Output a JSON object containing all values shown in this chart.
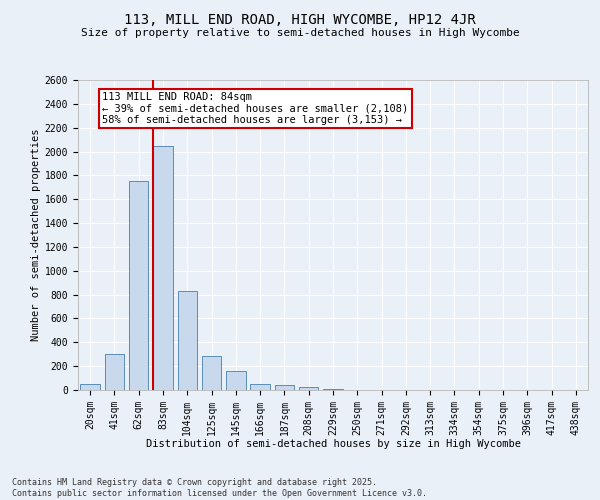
{
  "title": "113, MILL END ROAD, HIGH WYCOMBE, HP12 4JR",
  "subtitle": "Size of property relative to semi-detached houses in High Wycombe",
  "xlabel": "Distribution of semi-detached houses by size in High Wycombe",
  "ylabel": "Number of semi-detached properties",
  "categories": [
    "20sqm",
    "41sqm",
    "62sqm",
    "83sqm",
    "104sqm",
    "125sqm",
    "145sqm",
    "166sqm",
    "187sqm",
    "208sqm",
    "229sqm",
    "250sqm",
    "271sqm",
    "292sqm",
    "313sqm",
    "334sqm",
    "354sqm",
    "375sqm",
    "396sqm",
    "417sqm",
    "438sqm"
  ],
  "values": [
    50,
    300,
    1750,
    2050,
    830,
    285,
    160,
    50,
    40,
    25,
    5,
    0,
    0,
    0,
    0,
    0,
    0,
    0,
    0,
    0,
    0
  ],
  "bar_color": "#c8d9ed",
  "bar_edge_color": "#5b8db8",
  "highlight_line_idx": 3,
  "highlight_line_color": "#cc0000",
  "annotation_box_text": "113 MILL END ROAD: 84sqm\n← 39% of semi-detached houses are smaller (2,108)\n58% of semi-detached houses are larger (3,153) →",
  "ylim": [
    0,
    2600
  ],
  "yticks": [
    0,
    200,
    400,
    600,
    800,
    1000,
    1200,
    1400,
    1600,
    1800,
    2000,
    2200,
    2400,
    2600
  ],
  "title_fontsize": 10,
  "subtitle_fontsize": 8,
  "axis_label_fontsize": 7.5,
  "tick_fontsize": 7,
  "annotation_fontsize": 7.5,
  "footer_text": "Contains HM Land Registry data © Crown copyright and database right 2025.\nContains public sector information licensed under the Open Government Licence v3.0.",
  "background_color": "#eaf0f8",
  "plot_background_color": "#eaf0f8",
  "grid_color": "#ffffff"
}
